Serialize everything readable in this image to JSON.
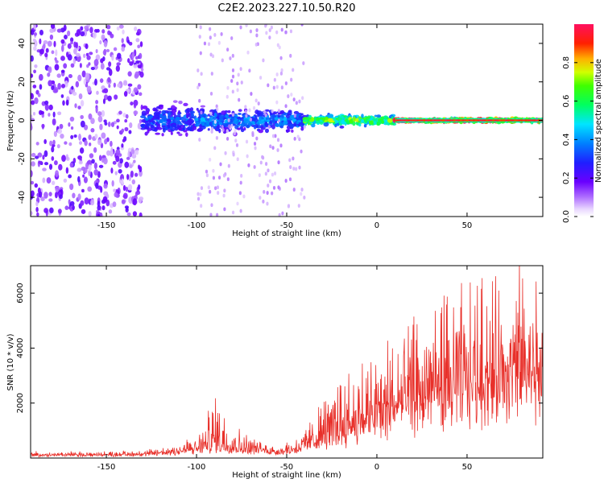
{
  "title": "C2E2.2023.227.10.50.R20",
  "colors": {
    "snr_line": "#e8302a",
    "background": "#ffffff",
    "frame": "#000000"
  },
  "chart_data": [
    {
      "type": "heatmap",
      "title": "C2E2.2023.227.10.50.R20",
      "xlabel": "Height of straight line (km)",
      "ylabel": "Frequency (Hz)",
      "xlim": [
        -192,
        92
      ],
      "ylim": [
        -50,
        50
      ],
      "x_ticks": [
        -150,
        -100,
        -50,
        0,
        50
      ],
      "x_tick_labels": [
        "-150",
        "-100",
        "-50",
        "0",
        "50"
      ],
      "y_ticks": [
        -40,
        -20,
        0,
        20,
        40
      ],
      "y_tick_labels": [
        "-40",
        "-20",
        "0",
        "20",
        "40"
      ],
      "colorbar": {
        "label": "Normalized spectral amplitude",
        "range": [
          0,
          1
        ],
        "ticks": [
          0.0,
          0.2,
          0.4,
          0.6,
          0.8
        ],
        "tick_labels": [
          "0.0",
          "0.2",
          "0.4",
          "0.6",
          "0.8"
        ],
        "colormap": "rainbow"
      },
      "regions": [
        {
          "x_range": [
            -192,
            -130
          ],
          "description": "broadband noise",
          "freq_spread_hz": 50,
          "amplitude": 0.15
        },
        {
          "x_range": [
            -130,
            -100
          ],
          "description": "scattered signal",
          "freq_spread_hz": 12,
          "amplitude": 0.3
        },
        {
          "x_range": [
            -100,
            -40
          ],
          "description": "concentrated signal",
          "freq_spread_hz": 9,
          "amplitude": 0.35
        },
        {
          "x_range": [
            -40,
            10
          ],
          "description": "narrowing signal",
          "freq_spread_hz": 4,
          "amplitude": 0.6
        },
        {
          "x_range": [
            10,
            92
          ],
          "description": "strong narrow line at 0 Hz",
          "freq_spread_hz": 1.5,
          "amplitude": 0.95
        }
      ]
    },
    {
      "type": "line",
      "xlabel": "Height of straight line (km)",
      "ylabel": "SNR (10 * v/v)",
      "xlim": [
        -192,
        92
      ],
      "ylim": [
        0,
        7000
      ],
      "x_ticks": [
        -150,
        -100,
        -50,
        0,
        50
      ],
      "x_tick_labels": [
        "-150",
        "-100",
        "-50",
        "0",
        "50"
      ],
      "y_ticks": [
        2000,
        4000,
        6000
      ],
      "y_tick_labels": [
        "2000",
        "4000",
        "6000"
      ],
      "series": [
        {
          "color": "#e8302a",
          "envelope": {
            "x": [
              -192,
              -170,
              -150,
              -130,
              -120,
              -110,
              -100,
              -95,
              -90,
              -85,
              -80,
              -75,
              -70,
              -65,
              -60,
              -55,
              -50,
              -45,
              -40,
              -35,
              -30,
              -25,
              -20,
              -15,
              -10,
              -5,
              0,
              5,
              10,
              15,
              20,
              25,
              30,
              35,
              40,
              45,
              50,
              55,
              60,
              65,
              70,
              75,
              80,
              85,
              92
            ],
            "baseline": [
              100,
              100,
              100,
              120,
              150,
              200,
              250,
              300,
              350,
              320,
              300,
              280,
              260,
              250,
              230,
              220,
              250,
              300,
              400,
              500,
              600,
              700,
              800,
              900,
              1000,
              1100,
              1200,
              1300,
              1500,
              1600,
              1700,
              1800,
              1900,
              2000,
              2100,
              2200,
              2300,
              2400,
              2500,
              2500,
              2600,
              2600,
              2700,
              2700,
              2800
            ],
            "peak": [
              250,
              250,
              250,
              300,
              400,
              600,
              900,
              1500,
              2300,
              1800,
              1400,
              1000,
              800,
              700,
              500,
              400,
              600,
              800,
              1100,
              1600,
              2200,
              2600,
              3200,
              3400,
              3600,
              3800,
              4100,
              4500,
              4800,
              5000,
              5200,
              5400,
              6500,
              6000,
              6300,
              6500,
              5900,
              6400,
              6600,
              6200,
              6700,
              6400,
              7000,
              6600,
              6800
            ]
          }
        }
      ]
    }
  ]
}
